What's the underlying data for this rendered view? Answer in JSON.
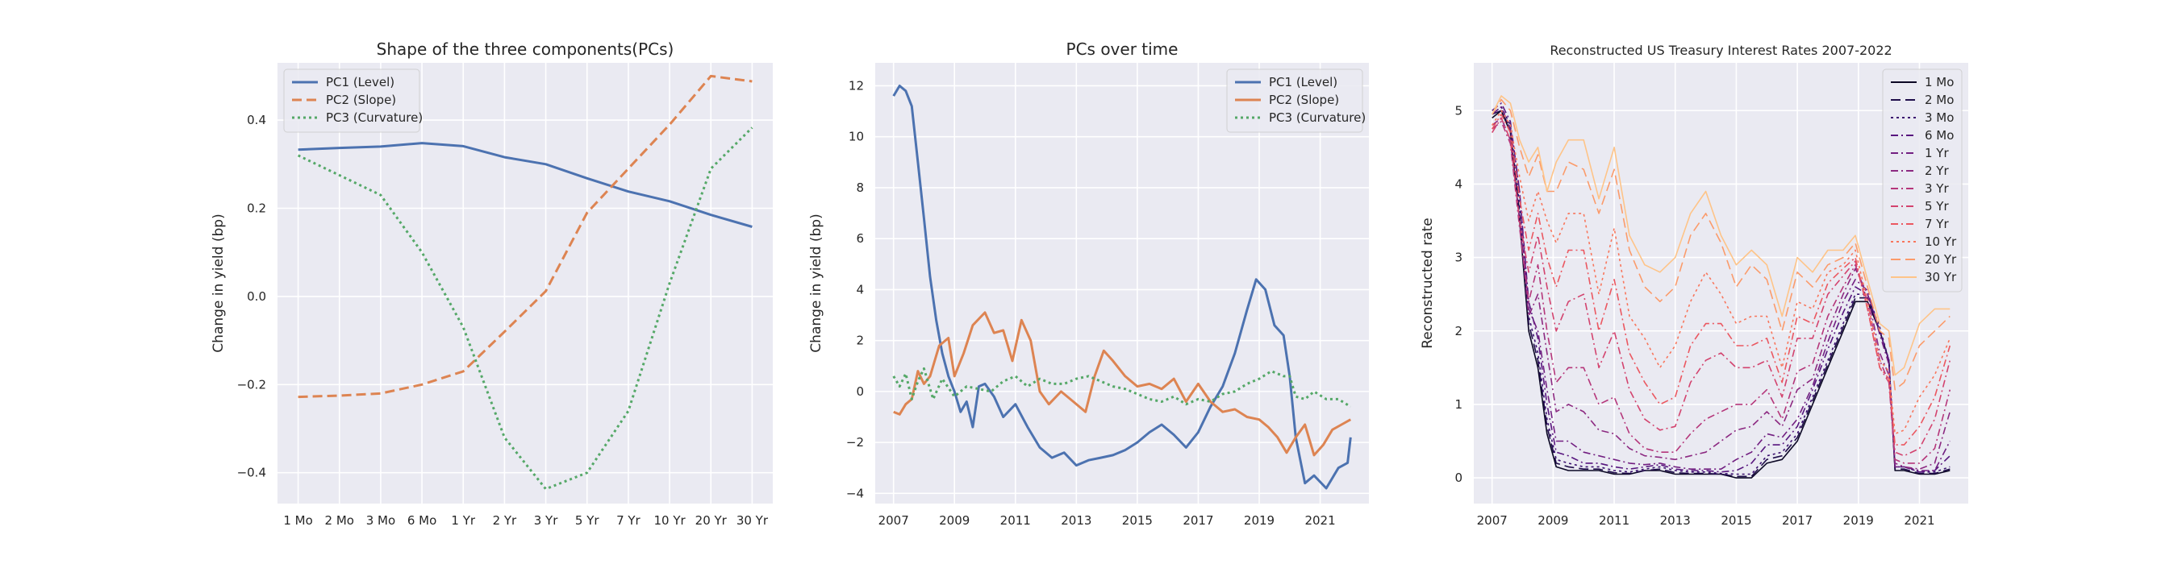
{
  "chart_data": [
    {
      "type": "line",
      "title": "Shape of the three components(PCs)",
      "xlabel": "",
      "ylabel": "Change in yield (bp)",
      "categories": [
        "1 Mo",
        "2 Mo",
        "3 Mo",
        "6 Mo",
        "1 Yr",
        "2 Yr",
        "3 Yr",
        "5 Yr",
        "7 Yr",
        "10 Yr",
        "20 Yr",
        "30 Yr"
      ],
      "yticks": [
        -0.4,
        -0.2,
        0.0,
        0.2,
        0.4
      ],
      "ytick_labels": [
        "−0.4",
        "−0.2",
        "0.0",
        "0.2",
        "0.4"
      ],
      "ylim": [
        -0.47,
        0.53
      ],
      "grid": true,
      "legend": "top-left",
      "series": [
        {
          "name": "PC1 (Level)",
          "color": "#4c72b0",
          "dash": "solid",
          "values": [
            0.333,
            0.337,
            0.34,
            0.348,
            0.341,
            0.316,
            0.3,
            0.268,
            0.238,
            0.216,
            0.185,
            0.158
          ]
        },
        {
          "name": "PC2 (Slope)",
          "color": "#dd8452",
          "dash": "dashed",
          "values": [
            -0.228,
            -0.225,
            -0.22,
            -0.2,
            -0.17,
            -0.08,
            0.012,
            0.19,
            0.29,
            0.39,
            0.5,
            0.488
          ]
        },
        {
          "name": "PC3 (Curvature)",
          "color": "#55a868",
          "dash": "dotted",
          "values": [
            0.32,
            0.275,
            0.23,
            0.1,
            -0.07,
            -0.32,
            -0.437,
            -0.4,
            -0.26,
            0.03,
            0.29,
            0.383
          ]
        }
      ]
    },
    {
      "type": "line",
      "title": "PCs over time",
      "xlabel": "",
      "ylabel": "Change in yield (bp)",
      "xticks": [
        2007,
        2009,
        2011,
        2013,
        2015,
        2017,
        2019,
        2021
      ],
      "xlim": [
        2006.4,
        2022.6
      ],
      "yticks": [
        -4,
        -2,
        0,
        2,
        4,
        6,
        8,
        10,
        12
      ],
      "ytick_labels": [
        "−4",
        "−2",
        "0",
        "2",
        "4",
        "6",
        "8",
        "10",
        "12"
      ],
      "ylim": [
        -4.4,
        12.9
      ],
      "grid": true,
      "legend": "top-right",
      "series": [
        {
          "name": "PC1 (Level)",
          "color": "#4c72b0",
          "dash": "solid",
          "x": [
            2007.0,
            2007.2,
            2007.4,
            2007.6,
            2007.8,
            2008.0,
            2008.2,
            2008.4,
            2008.6,
            2008.8,
            2009.0,
            2009.2,
            2009.4,
            2009.6,
            2009.8,
            2010.0,
            2010.3,
            2010.6,
            2011.0,
            2011.4,
            2011.8,
            2012.2,
            2012.6,
            2013.0,
            2013.4,
            2013.8,
            2014.2,
            2014.6,
            2015.0,
            2015.4,
            2015.8,
            2016.2,
            2016.6,
            2017.0,
            2017.4,
            2017.8,
            2018.2,
            2018.6,
            2018.9,
            2019.2,
            2019.5,
            2019.8,
            2020.0,
            2020.2,
            2020.5,
            2020.8,
            2021.2,
            2021.6,
            2021.9,
            2022.0
          ],
          "y": [
            11.6,
            12.0,
            11.8,
            11.2,
            9.0,
            6.8,
            4.5,
            2.8,
            1.5,
            0.6,
            0.0,
            -0.8,
            -0.4,
            -1.4,
            0.2,
            0.3,
            -0.2,
            -1.0,
            -0.5,
            -1.4,
            -2.2,
            -2.6,
            -2.4,
            -2.9,
            -2.7,
            -2.6,
            -2.5,
            -2.3,
            -2.0,
            -1.6,
            -1.3,
            -1.7,
            -2.2,
            -1.6,
            -0.6,
            0.2,
            1.5,
            3.2,
            4.4,
            4.0,
            2.6,
            2.2,
            0.6,
            -1.8,
            -3.6,
            -3.3,
            -3.8,
            -3.0,
            -2.8,
            -1.8
          ]
        },
        {
          "name": "PC2 (Slope)",
          "color": "#dd8452",
          "dash": "solid",
          "x": [
            2007.0,
            2007.2,
            2007.4,
            2007.6,
            2007.8,
            2008.0,
            2008.2,
            2008.5,
            2008.8,
            2009.0,
            2009.3,
            2009.6,
            2010.0,
            2010.3,
            2010.6,
            2010.9,
            2011.2,
            2011.5,
            2011.8,
            2012.1,
            2012.5,
            2012.9,
            2013.3,
            2013.6,
            2013.9,
            2014.2,
            2014.6,
            2015.0,
            2015.4,
            2015.8,
            2016.2,
            2016.6,
            2017.0,
            2017.4,
            2017.8,
            2018.2,
            2018.6,
            2019.0,
            2019.3,
            2019.6,
            2019.9,
            2020.2,
            2020.5,
            2020.8,
            2021.1,
            2021.4,
            2021.7,
            2022.0
          ],
          "y": [
            -0.8,
            -0.9,
            -0.5,
            -0.3,
            0.8,
            0.3,
            0.6,
            1.8,
            2.1,
            0.6,
            1.5,
            2.6,
            3.1,
            2.3,
            2.4,
            1.2,
            2.8,
            2.0,
            0.0,
            -0.5,
            0.0,
            -0.4,
            -0.8,
            0.6,
            1.6,
            1.2,
            0.6,
            0.2,
            0.3,
            0.1,
            0.5,
            -0.4,
            0.3,
            -0.4,
            -0.8,
            -0.7,
            -1.0,
            -1.1,
            -1.4,
            -1.8,
            -2.4,
            -1.8,
            -1.3,
            -2.5,
            -2.1,
            -1.5,
            -1.3,
            -1.1
          ]
        },
        {
          "name": "PC3 (Curvature)",
          "color": "#55a868",
          "dash": "dotted",
          "x": [
            2007.0,
            2007.2,
            2007.4,
            2007.6,
            2007.8,
            2008.0,
            2008.3,
            2008.6,
            2009.0,
            2009.4,
            2009.8,
            2010.2,
            2010.6,
            2011.0,
            2011.4,
            2011.8,
            2012.2,
            2012.6,
            2013.0,
            2013.4,
            2013.8,
            2014.2,
            2014.6,
            2015.0,
            2015.4,
            2015.8,
            2016.2,
            2016.6,
            2017.0,
            2017.4,
            2017.8,
            2018.2,
            2018.6,
            2019.0,
            2019.4,
            2019.8,
            2020.0,
            2020.2,
            2020.5,
            2020.8,
            2021.2,
            2021.6,
            2022.0
          ],
          "y": [
            0.6,
            0.2,
            0.7,
            -0.3,
            0.4,
            0.9,
            -0.3,
            0.5,
            -0.2,
            0.2,
            0.1,
            0.0,
            0.4,
            0.6,
            0.2,
            0.5,
            0.3,
            0.3,
            0.5,
            0.6,
            0.4,
            0.2,
            0.1,
            -0.1,
            -0.3,
            -0.4,
            -0.2,
            -0.5,
            -0.3,
            -0.4,
            -0.1,
            0.0,
            0.3,
            0.5,
            0.8,
            0.6,
            0.6,
            -0.2,
            -0.3,
            0.0,
            -0.3,
            -0.3,
            -0.6
          ]
        }
      ]
    },
    {
      "type": "line",
      "title": "Reconstructed US Treasury Interest Rates 2007-2022",
      "xlabel": "",
      "ylabel": "Reconstructed rate",
      "xticks": [
        2007,
        2009,
        2011,
        2013,
        2015,
        2017,
        2019,
        2021
      ],
      "xlim": [
        2006.4,
        2022.6
      ],
      "yticks": [
        0,
        1,
        2,
        3,
        4,
        5
      ],
      "ytick_labels": [
        "0",
        "1",
        "2",
        "3",
        "4",
        "5"
      ],
      "ylim": [
        -0.35,
        5.65
      ],
      "grid": true,
      "legend": "top-right",
      "x": [
        2007.0,
        2007.3,
        2007.6,
        2007.9,
        2008.2,
        2008.5,
        2008.8,
        2009.1,
        2009.5,
        2010.0,
        2010.5,
        2011.0,
        2011.5,
        2012.0,
        2012.5,
        2013.0,
        2013.5,
        2014.0,
        2014.5,
        2015.0,
        2015.5,
        2016.0,
        2016.5,
        2017.0,
        2017.5,
        2018.0,
        2018.5,
        2018.9,
        2019.3,
        2019.7,
        2020.0,
        2020.2,
        2020.5,
        2021.0,
        2021.5,
        2022.0
      ],
      "series": [
        {
          "name": "1 Mo",
          "color": "#0b0724",
          "dash": "solid",
          "y": [
            4.9,
            5.0,
            4.7,
            3.5,
            2.0,
            1.5,
            0.6,
            0.15,
            0.1,
            0.1,
            0.1,
            0.05,
            0.05,
            0.1,
            0.1,
            0.05,
            0.05,
            0.05,
            0.05,
            0.0,
            0.0,
            0.2,
            0.25,
            0.5,
            1.0,
            1.5,
            2.0,
            2.4,
            2.4,
            2.0,
            1.6,
            0.1,
            0.1,
            0.05,
            0.05,
            0.1
          ]
        },
        {
          "name": "2 Mo",
          "color": "#1f0d4a",
          "dash": "dashed",
          "y": [
            4.95,
            5.0,
            4.75,
            3.6,
            2.1,
            1.6,
            0.7,
            0.2,
            0.15,
            0.12,
            0.12,
            0.07,
            0.06,
            0.1,
            0.12,
            0.07,
            0.06,
            0.06,
            0.05,
            0.02,
            0.02,
            0.25,
            0.3,
            0.55,
            1.05,
            1.55,
            2.05,
            2.45,
            2.45,
            2.0,
            1.6,
            0.12,
            0.12,
            0.06,
            0.06,
            0.12
          ]
        },
        {
          "name": "3 Mo",
          "color": "#3a0f6e",
          "dash": "dotted",
          "y": [
            4.95,
            5.05,
            4.8,
            3.7,
            2.2,
            1.7,
            0.8,
            0.25,
            0.2,
            0.15,
            0.15,
            0.1,
            0.08,
            0.12,
            0.15,
            0.1,
            0.08,
            0.08,
            0.06,
            0.05,
            0.05,
            0.3,
            0.35,
            0.6,
            1.1,
            1.6,
            2.1,
            2.5,
            2.5,
            2.05,
            1.6,
            0.15,
            0.15,
            0.08,
            0.08,
            0.15
          ]
        },
        {
          "name": "6 Mo",
          "color": "#57157e",
          "dash": "dashdot",
          "y": [
            5.0,
            5.1,
            4.85,
            3.9,
            2.4,
            1.9,
            1.0,
            0.35,
            0.3,
            0.2,
            0.2,
            0.15,
            0.12,
            0.15,
            0.18,
            0.12,
            0.1,
            0.1,
            0.08,
            0.1,
            0.2,
            0.45,
            0.45,
            0.7,
            1.2,
            1.75,
            2.25,
            2.6,
            2.5,
            2.0,
            1.6,
            0.15,
            0.15,
            0.08,
            0.1,
            0.3
          ]
        },
        {
          "name": "1 Yr",
          "color": "#721f81",
          "dash": "dashdot",
          "y": [
            4.95,
            5.05,
            4.75,
            3.9,
            2.3,
            2.0,
            1.2,
            0.5,
            0.5,
            0.35,
            0.3,
            0.25,
            0.2,
            0.18,
            0.2,
            0.15,
            0.12,
            0.12,
            0.12,
            0.25,
            0.35,
            0.6,
            0.55,
            0.8,
            1.25,
            1.85,
            2.4,
            2.7,
            2.55,
            1.95,
            1.55,
            0.15,
            0.15,
            0.1,
            0.1,
            0.5
          ]
        },
        {
          "name": "2 Yr",
          "color": "#8c2981",
          "dash": "dashdot",
          "y": [
            4.8,
            4.9,
            4.6,
            3.5,
            2.2,
            2.5,
            1.7,
            0.9,
            1.0,
            0.9,
            0.65,
            0.6,
            0.4,
            0.3,
            0.28,
            0.25,
            0.3,
            0.35,
            0.5,
            0.65,
            0.7,
            0.9,
            0.7,
            1.2,
            1.35,
            2.0,
            2.5,
            2.85,
            2.5,
            1.7,
            1.4,
            0.2,
            0.15,
            0.12,
            0.2,
            0.9
          ]
        },
        {
          "name": "3 Yr",
          "color": "#b5367a",
          "dash": "dashdot",
          "y": [
            4.75,
            4.85,
            4.55,
            3.4,
            2.4,
            2.9,
            2.0,
            1.3,
            1.5,
            1.5,
            1.0,
            1.1,
            0.6,
            0.4,
            0.35,
            0.35,
            0.6,
            0.8,
            0.9,
            1.0,
            1.0,
            1.2,
            0.8,
            1.45,
            1.55,
            2.2,
            2.6,
            2.9,
            2.4,
            1.6,
            1.3,
            0.25,
            0.2,
            0.2,
            0.4,
            1.2
          ]
        },
        {
          "name": "5 Yr",
          "color": "#d3436e",
          "dash": "dashdot",
          "y": [
            4.7,
            4.9,
            4.6,
            3.5,
            2.8,
            3.3,
            2.6,
            2.0,
            2.4,
            2.5,
            1.5,
            2.0,
            1.2,
            0.8,
            0.65,
            0.7,
            1.3,
            1.6,
            1.7,
            1.5,
            1.5,
            1.6,
            1.1,
            1.9,
            1.9,
            2.5,
            2.75,
            2.95,
            2.3,
            1.5,
            1.3,
            0.35,
            0.3,
            0.4,
            0.8,
            1.6
          ]
        },
        {
          "name": "7 Yr",
          "color": "#eb5760",
          "dash": "dashdot",
          "y": [
            4.75,
            4.95,
            4.7,
            3.8,
            3.1,
            3.6,
            3.0,
            2.6,
            3.1,
            3.1,
            2.0,
            2.7,
            1.7,
            1.3,
            1.0,
            1.1,
            1.8,
            2.1,
            2.1,
            1.8,
            1.8,
            1.9,
            1.3,
            2.2,
            2.1,
            2.65,
            2.85,
            3.0,
            2.3,
            1.5,
            1.35,
            0.45,
            0.45,
            0.7,
            1.1,
            1.8
          ]
        },
        {
          "name": "10 Yr",
          "color": "#f8765c",
          "dash": "dotted",
          "y": [
            4.8,
            5.0,
            4.8,
            4.1,
            3.5,
            3.9,
            3.5,
            3.2,
            3.6,
            3.6,
            2.5,
            3.4,
            2.2,
            1.9,
            1.5,
            1.8,
            2.4,
            2.8,
            2.5,
            2.1,
            2.2,
            2.2,
            1.5,
            2.4,
            2.3,
            2.8,
            2.9,
            3.1,
            2.4,
            1.6,
            1.45,
            0.6,
            0.65,
            1.1,
            1.4,
            1.9
          ]
        },
        {
          "name": "20 Yr",
          "color": "#fb9b6b",
          "dash": "dashed",
          "y": [
            4.95,
            5.15,
            5.0,
            4.5,
            4.1,
            4.4,
            3.9,
            3.9,
            4.3,
            4.2,
            3.6,
            4.2,
            3.1,
            2.6,
            2.4,
            2.6,
            3.3,
            3.6,
            3.2,
            2.6,
            2.9,
            2.7,
            2.0,
            2.8,
            2.6,
            2.9,
            3.0,
            3.2,
            2.6,
            2.0,
            1.9,
            1.2,
            1.3,
            1.8,
            2.0,
            2.2
          ]
        },
        {
          "name": "30 Yr",
          "color": "#fec488",
          "dash": "solid",
          "y": [
            4.95,
            5.2,
            5.1,
            4.6,
            4.3,
            4.5,
            3.9,
            4.3,
            4.6,
            4.6,
            3.8,
            4.5,
            3.3,
            2.9,
            2.8,
            3.0,
            3.6,
            3.9,
            3.3,
            2.9,
            3.1,
            2.9,
            2.2,
            3.0,
            2.8,
            3.1,
            3.1,
            3.3,
            2.7,
            2.1,
            2.0,
            1.4,
            1.5,
            2.1,
            2.3,
            2.3
          ]
        }
      ]
    }
  ]
}
